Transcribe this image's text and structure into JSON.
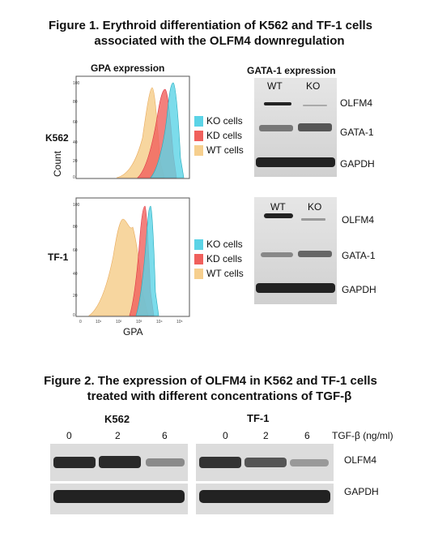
{
  "figure1": {
    "title_line1": "Figure 1. Erythroid differentiation of K562 and TF-1 cells",
    "title_line2": "associated with the OLFM4 downregulation",
    "flow_panel_title": "GPA expression",
    "blot_panel_title": "GATA-1 expression",
    "y_axis_label": "Count",
    "x_axis_label": "GPA",
    "rows": [
      {
        "cell_line": "K562",
        "lanes": [
          "WT",
          "KO"
        ],
        "bands": [
          "OLFM4",
          "GATA-1",
          "GAPDH"
        ]
      },
      {
        "cell_line": "TF-1",
        "lanes": [
          "WT",
          "KO"
        ],
        "bands": [
          "OLFM4",
          "GATA-1",
          "GAPDH"
        ]
      }
    ],
    "legend": [
      {
        "label": "KO cells",
        "color": "#5bd3e6"
      },
      {
        "label": "KD cells",
        "color": "#f0605c"
      },
      {
        "label": "WT cells",
        "color": "#f6cf8e"
      }
    ],
    "y_ticks": [
      "0",
      "20",
      "40",
      "60",
      "80",
      "100"
    ],
    "x_ticks": [
      "0",
      "10¹",
      "10²",
      "10³",
      "10⁴",
      "10⁵"
    ]
  },
  "figure2": {
    "title_line1": "Figure 2. The expression of OLFM4 in K562 and TF-1 cells",
    "title_line2": "treated with different concentrations of TGF-β",
    "groups": [
      {
        "cell_line": "K562",
        "concentrations": [
          "0",
          "2",
          "6"
        ]
      },
      {
        "cell_line": "TF-1",
        "concentrations": [
          "0",
          "2",
          "6"
        ]
      }
    ],
    "treatment_label": "TGF-β (ng/ml)",
    "bands": [
      "OLFM4",
      "GAPDH"
    ]
  }
}
